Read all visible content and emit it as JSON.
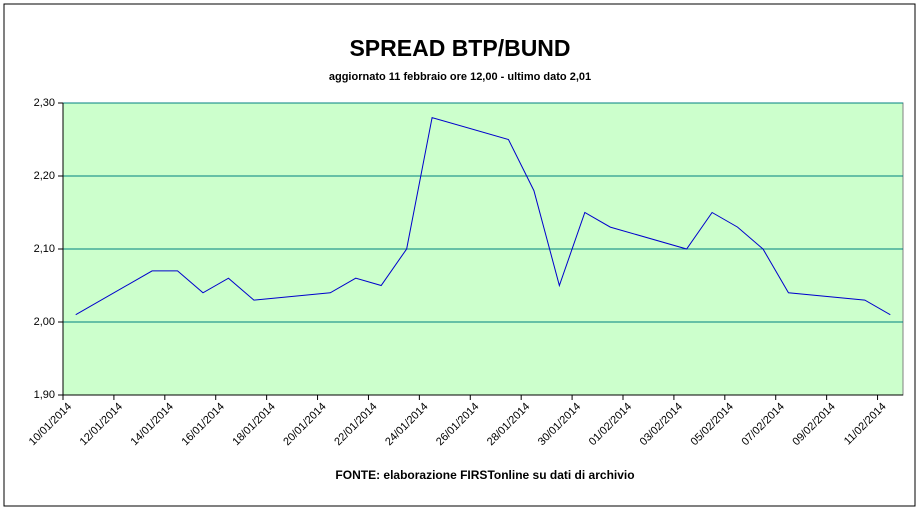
{
  "chart_data": {
    "type": "line",
    "title": "SPREAD BTP/BUND",
    "subtitle": "aggiornato 11 febbraio ore 12,00 - ultimo dato 2,01",
    "source": "FONTE:  elaborazione FIRSTonline su dati di archivio",
    "x": [
      "10/01/2014",
      "13/01/2014",
      "14/01/2014",
      "15/01/2014",
      "16/01/2014",
      "17/01/2014",
      "20/01/2014",
      "21/01/2014",
      "22/01/2014",
      "23/01/2014",
      "24/01/2014",
      "27/01/2014",
      "28/01/2014",
      "29/01/2014",
      "30/01/2014",
      "31/01/2014",
      "03/02/2014",
      "04/02/2014",
      "05/02/2014",
      "06/02/2014",
      "07/02/2014",
      "10/02/2014",
      "11/02/2014"
    ],
    "series": [
      {
        "name": "Spread BTP/Bund",
        "color": "#0000cc",
        "values": [
          2.01,
          2.07,
          2.07,
          2.04,
          2.06,
          2.03,
          2.04,
          2.06,
          2.05,
          2.1,
          2.28,
          2.25,
          2.18,
          2.05,
          2.15,
          2.13,
          2.1,
          2.15,
          2.13,
          2.1,
          2.04,
          2.03,
          2.01
        ]
      }
    ],
    "xlim": [
      "10/01/2014",
      "11/02/2014"
    ],
    "xticks": [
      "10/01/2014",
      "12/01/2014",
      "14/01/2014",
      "16/01/2014",
      "18/01/2014",
      "20/01/2014",
      "22/01/2014",
      "24/01/2014",
      "26/01/2014",
      "28/01/2014",
      "30/01/2014",
      "01/02/2014",
      "03/02/2014",
      "05/02/2014",
      "07/02/2014",
      "09/02/2014",
      "11/02/2014"
    ],
    "ylim": [
      1.9,
      2.3
    ],
    "yticks": [
      {
        "value": 1.9,
        "label": "1,90"
      },
      {
        "value": 2.0,
        "label": "2,00"
      },
      {
        "value": 2.1,
        "label": "2,10"
      },
      {
        "value": 2.2,
        "label": "2,20"
      },
      {
        "value": 2.3,
        "label": "2,30"
      }
    ],
    "grid": true,
    "plot_background": "#ccffcc",
    "grid_color": "#008080"
  }
}
